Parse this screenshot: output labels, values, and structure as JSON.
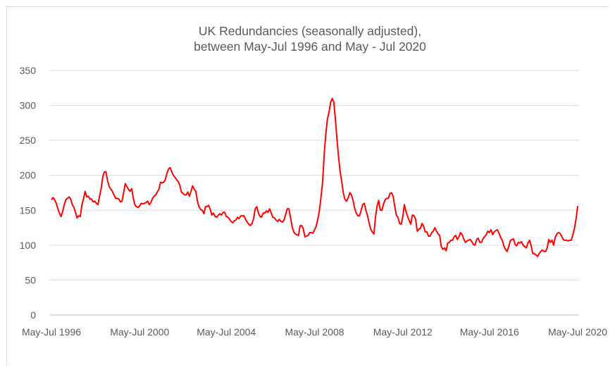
{
  "chart_data": {
    "type": "line",
    "title_line1": "UK Redundancies  (seasonally adjusted),",
    "title_line2": "between May-Jul 1996 and May - Jul 2020",
    "xlabel": "",
    "ylabel": "",
    "ylim": [
      0,
      350
    ],
    "yticks": [
      "0",
      "50",
      "100",
      "150",
      "200",
      "250",
      "300",
      "350"
    ],
    "xticks": [
      "May-Jul 1996",
      "May-Jul 2000",
      "May-Jul 2004",
      "May-Jul 2008",
      "May-Jul 2012",
      "May-Jul 2016",
      "May-Jul 2020"
    ],
    "grid": true,
    "legend": "none",
    "line_color": "#ff0000",
    "series": [
      {
        "x_start": "May-Jul 1996",
        "x_end": "May-Jul 2020",
        "frequency": "monthly",
        "values": [
          165,
          168,
          165,
          160,
          152,
          146,
          141,
          148,
          158,
          165,
          167,
          169,
          166,
          158,
          154,
          147,
          139,
          142,
          141,
          158,
          166,
          177,
          169,
          170,
          166,
          166,
          162,
          163,
          160,
          158,
          170,
          181,
          198,
          205,
          205,
          192,
          184,
          180,
          177,
          172,
          167,
          167,
          166,
          162,
          163,
          175,
          188,
          184,
          180,
          177,
          181,
          168,
          158,
          155,
          154,
          156,
          160,
          159,
          160,
          161,
          163,
          158,
          161,
          167,
          170,
          172,
          176,
          180,
          190,
          189,
          190,
          194,
          203,
          209,
          211,
          205,
          200,
          197,
          194,
          191,
          186,
          176,
          174,
          172,
          172,
          176,
          170,
          177,
          185,
          180,
          177,
          163,
          155,
          151,
          150,
          145,
          155,
          155,
          157,
          151,
          143,
          146,
          141,
          140,
          143,
          145,
          143,
          147,
          147,
          141,
          140,
          137,
          134,
          132,
          135,
          136,
          140,
          138,
          142,
          142,
          142,
          137,
          133,
          130,
          128,
          131,
          138,
          152,
          155,
          146,
          141,
          140,
          146,
          146,
          149,
          147,
          152,
          146,
          140,
          139,
          136,
          134,
          137,
          134,
          133,
          136,
          144,
          152,
          152,
          140,
          127,
          119,
          116,
          115,
          114,
          128,
          128,
          123,
          112,
          113,
          114,
          118,
          118,
          117,
          122,
          127,
          137,
          149,
          168,
          190,
          230,
          258,
          280,
          290,
          304,
          310,
          305,
          280,
          251,
          225,
          205,
          190,
          174,
          165,
          163,
          168,
          175,
          172,
          164,
          153,
          146,
          142,
          142,
          149,
          158,
          160,
          150,
          142,
          132,
          123,
          119,
          116,
          140,
          156,
          164,
          150,
          150,
          159,
          165,
          167,
          167,
          174,
          175,
          170,
          155,
          143,
          140,
          131,
          130,
          141,
          158,
          148,
          141,
          135,
          130,
          143,
          142,
          137,
          120,
          123,
          124,
          131,
          127,
          119,
          119,
          113,
          113,
          118,
          120,
          125,
          120,
          116,
          114,
          98,
          94,
          96,
          92,
          103,
          104,
          107,
          107,
          112,
          114,
          108,
          112,
          118,
          115,
          109,
          104,
          106,
          107,
          108,
          105,
          101,
          100,
          108,
          110,
          104,
          104,
          109,
          112,
          115,
          120,
          118,
          122,
          115,
          119,
          121,
          122,
          117,
          111,
          107,
          99,
          94,
          91,
          98,
          106,
          108,
          109,
          101,
          99,
          104,
          103,
          105,
          100,
          98,
          96,
          103,
          107,
          99,
          88,
          88,
          86,
          84,
          88,
          91,
          93,
          91,
          91,
          96,
          108,
          104,
          107,
          100,
          111,
          116,
          118,
          117,
          113,
          108,
          107,
          107,
          106,
          107,
          107,
          115,
          124,
          137,
          156
        ]
      }
    ]
  }
}
